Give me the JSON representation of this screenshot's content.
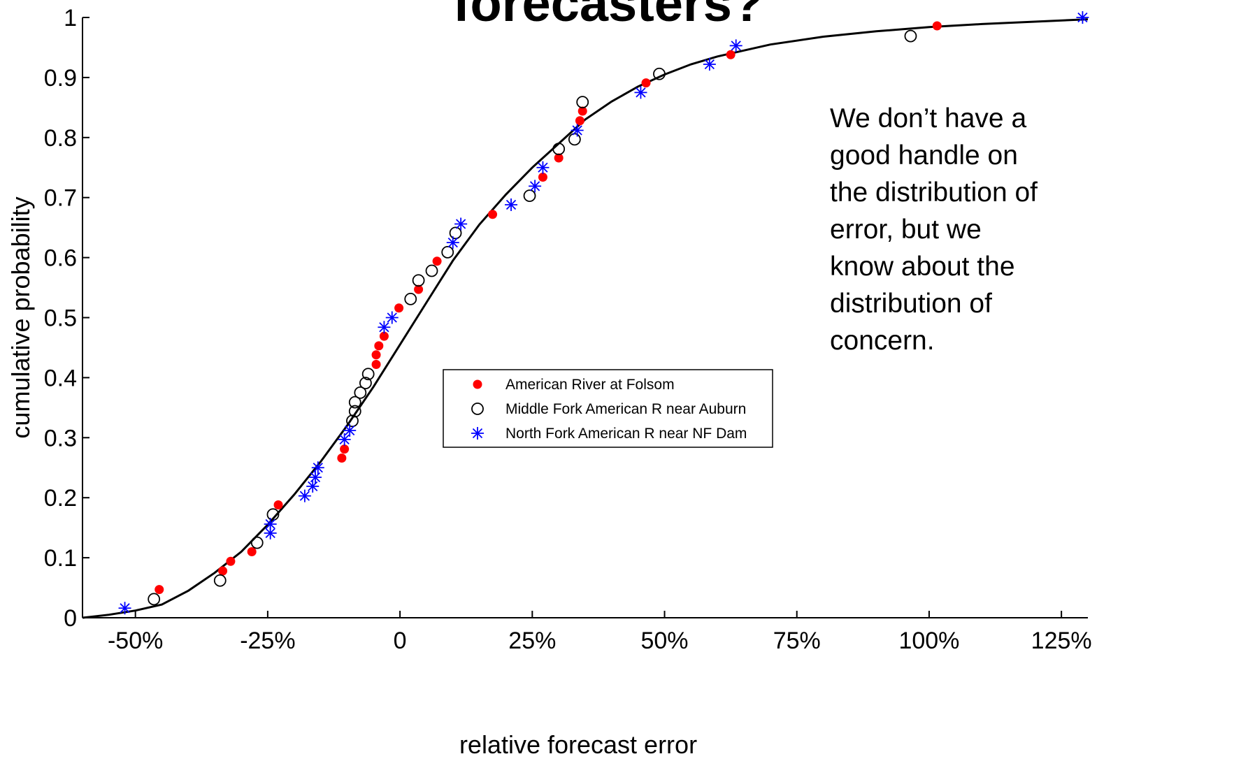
{
  "slide": {
    "title": "forecasters?",
    "annotation": "We don’t have a\ngood handle on\nthe distribution of\nerror, but we\nknow about the\ndistribution of\nconcern."
  },
  "chart_data": {
    "type": "scatter",
    "xlabel": "relative forecast error",
    "ylabel": "cumulative probability",
    "xlim": [
      -60,
      130
    ],
    "ylim": [
      0,
      1
    ],
    "x_ticks": [
      -50,
      -25,
      0,
      25,
      50,
      75,
      100,
      125
    ],
    "x_tick_labels": [
      "-50%",
      "-25%",
      "0",
      "25%",
      "50%",
      "75%",
      "100%",
      "125%"
    ],
    "y_ticks": [
      0,
      0.1,
      0.2,
      0.3,
      0.4,
      0.5,
      0.6,
      0.7,
      0.8,
      0.9,
      1
    ],
    "y_tick_labels": [
      "0",
      "0.1",
      "0.2",
      "0.3",
      "0.4",
      "0.5",
      "0.6",
      "0.7",
      "0.8",
      "0.9",
      "1"
    ],
    "grid": false,
    "legend_position": "center",
    "series": [
      {
        "name": "American River at Folsom",
        "marker": "filled-dot",
        "color": "#ff0000",
        "points": [
          [
            -45.5,
            0.047
          ],
          [
            -33.5,
            0.078
          ],
          [
            -32,
            0.094
          ],
          [
            -28,
            0.11
          ],
          [
            -23,
            0.188
          ],
          [
            -11,
            0.266
          ],
          [
            -10.5,
            0.281
          ],
          [
            -4.5,
            0.422
          ],
          [
            -4.5,
            0.438
          ],
          [
            -4,
            0.453
          ],
          [
            -3,
            0.469
          ],
          [
            -0.2,
            0.516
          ],
          [
            3.5,
            0.547
          ],
          [
            7,
            0.594
          ],
          [
            17.5,
            0.672
          ],
          [
            27,
            0.734
          ],
          [
            30,
            0.766
          ],
          [
            34,
            0.828
          ],
          [
            34.5,
            0.844
          ],
          [
            46.5,
            0.891
          ],
          [
            62.5,
            0.938
          ],
          [
            101.5,
            0.986
          ]
        ]
      },
      {
        "name": "Middle Fork American R near Auburn",
        "marker": "open-circle",
        "color": "#000000",
        "points": [
          [
            -46.5,
            0.031
          ],
          [
            -34,
            0.062
          ],
          [
            -27,
            0.125
          ],
          [
            -24,
            0.172
          ],
          [
            -9,
            0.328
          ],
          [
            -8.5,
            0.344
          ],
          [
            -8.5,
            0.359
          ],
          [
            -7.5,
            0.375
          ],
          [
            -6.5,
            0.391
          ],
          [
            -6,
            0.406
          ],
          [
            2,
            0.531
          ],
          [
            3.5,
            0.562
          ],
          [
            6,
            0.578
          ],
          [
            9,
            0.609
          ],
          [
            10.5,
            0.641
          ],
          [
            24.5,
            0.703
          ],
          [
            30,
            0.781
          ],
          [
            33,
            0.797
          ],
          [
            34.5,
            0.859
          ],
          [
            49,
            0.906
          ],
          [
            96.5,
            0.969
          ]
        ]
      },
      {
        "name": "North Fork American R near NF Dam",
        "marker": "asterisk",
        "color": "#0000ff",
        "points": [
          [
            -52,
            0.016
          ],
          [
            -24.5,
            0.141
          ],
          [
            -24.5,
            0.156
          ],
          [
            -18,
            0.203
          ],
          [
            -16.5,
            0.219
          ],
          [
            -16,
            0.234
          ],
          [
            -15.5,
            0.25
          ],
          [
            -10.5,
            0.297
          ],
          [
            -9.5,
            0.312
          ],
          [
            -3,
            0.484
          ],
          [
            -1.5,
            0.5
          ],
          [
            10,
            0.625
          ],
          [
            11.5,
            0.656
          ],
          [
            21,
            0.688
          ],
          [
            25.5,
            0.719
          ],
          [
            27,
            0.75
          ],
          [
            33.5,
            0.812
          ],
          [
            45.5,
            0.875
          ],
          [
            58.5,
            0.922
          ],
          [
            63.5,
            0.953
          ],
          [
            129,
            1.0
          ]
        ]
      }
    ],
    "fit_curve": {
      "color": "#000000",
      "points": [
        [
          -60,
          0.0
        ],
        [
          -55,
          0.005
        ],
        [
          -50,
          0.012
        ],
        [
          -45,
          0.022
        ],
        [
          -40,
          0.045
        ],
        [
          -35,
          0.075
        ],
        [
          -30,
          0.11
        ],
        [
          -25,
          0.155
        ],
        [
          -20,
          0.205
        ],
        [
          -15,
          0.26
        ],
        [
          -10,
          0.32
        ],
        [
          -5,
          0.385
        ],
        [
          0,
          0.455
        ],
        [
          5,
          0.525
        ],
        [
          10,
          0.595
        ],
        [
          15,
          0.655
        ],
        [
          20,
          0.705
        ],
        [
          25,
          0.75
        ],
        [
          30,
          0.79
        ],
        [
          35,
          0.83
        ],
        [
          40,
          0.86
        ],
        [
          45,
          0.885
        ],
        [
          50,
          0.905
        ],
        [
          55,
          0.922
        ],
        [
          60,
          0.935
        ],
        [
          70,
          0.955
        ],
        [
          80,
          0.968
        ],
        [
          90,
          0.977
        ],
        [
          100,
          0.984
        ],
        [
          110,
          0.989
        ],
        [
          120,
          0.993
        ],
        [
          130,
          0.997
        ]
      ]
    }
  }
}
